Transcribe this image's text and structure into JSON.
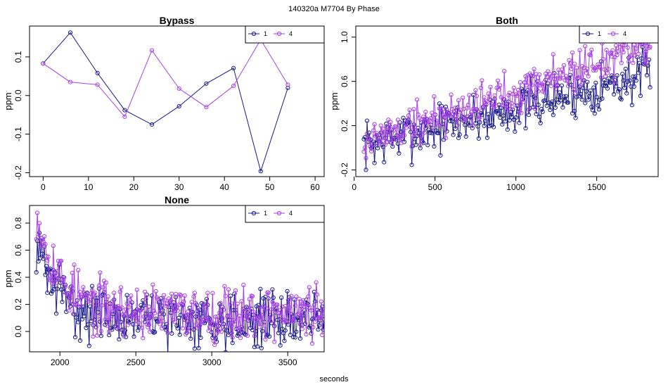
{
  "figure": {
    "title": "140320a   M7704   By Phase",
    "xlabel": "seconds"
  },
  "colors": {
    "series1": "#1a1a8c",
    "series4": "#a640e6"
  },
  "chart_data": [
    {
      "type": "line",
      "title": "Bypass",
      "ylabel": "ppm",
      "xlim": [
        -3,
        62
      ],
      "ylim": [
        -0.21,
        0.18
      ],
      "xticks": [
        0,
        10,
        20,
        30,
        40,
        50,
        60
      ],
      "yticks": [
        -0.2,
        -0.1,
        0.0,
        0.1
      ],
      "ytick_labels": [
        "-0.2",
        "-0.1",
        "0.0",
        "0.1"
      ],
      "legend": [
        "1",
        "4"
      ],
      "legend_position": "top-right",
      "series": [
        {
          "name": "1",
          "x": [
            0,
            6,
            12,
            18,
            24,
            30,
            36,
            42,
            48,
            54
          ],
          "y": [
            0.083,
            0.163,
            0.058,
            -0.038,
            -0.075,
            -0.028,
            0.031,
            0.071,
            -0.196,
            0.02
          ]
        },
        {
          "name": "4",
          "x": [
            0,
            6,
            12,
            18,
            24,
            30,
            36,
            42,
            48,
            54
          ],
          "y": [
            0.083,
            0.035,
            0.028,
            -0.055,
            0.117,
            0.018,
            -0.03,
            0.025,
            0.145,
            0.028
          ]
        }
      ]
    },
    {
      "type": "line",
      "title": "Both",
      "ylabel": "ppm",
      "xlim": [
        10,
        1880
      ],
      "ylim": [
        -0.26,
        1.1
      ],
      "xticks": [
        0,
        500,
        1000,
        1500
      ],
      "yticks": [
        -0.2,
        0.2,
        0.6,
        1.0
      ],
      "ytick_labels": [
        "-0.2",
        "0.2",
        "0.6",
        "1.0"
      ],
      "legend": [
        "1",
        "4"
      ],
      "legend_position": "top-right",
      "series": [
        {
          "name": "1",
          "x_range": [
            60,
            1830
          ],
          "n_points": 270,
          "start": 0.02,
          "end": 0.66,
          "noise": 0.11,
          "seed": 7
        },
        {
          "name": "4",
          "x_range": [
            60,
            1830
          ],
          "n_points": 270,
          "start": 0.05,
          "end": 0.93,
          "noise": 0.1,
          "seed": 19
        }
      ]
    },
    {
      "type": "line",
      "title": "None",
      "ylabel": "ppm",
      "xlim": [
        1800,
        3740
      ],
      "ylim": [
        -0.15,
        0.93
      ],
      "xticks": [
        2000,
        2500,
        3000,
        3500
      ],
      "yticks": [
        0.0,
        0.2,
        0.4,
        0.6,
        0.8
      ],
      "ytick_labels": [
        "0.0",
        "0.2",
        "0.4",
        "0.6",
        "0.8"
      ],
      "legend": [
        "1",
        "4"
      ],
      "legend_position": "top-right",
      "series": [
        {
          "name": "1",
          "x_range": [
            1845,
            3740
          ],
          "n_points": 290,
          "start": 0.66,
          "floor": 0.09,
          "decay": 150,
          "noise": 0.1,
          "seed": 31
        },
        {
          "name": "4",
          "x_range": [
            1845,
            3740
          ],
          "n_points": 290,
          "start": 0.89,
          "floor": 0.14,
          "decay": 150,
          "noise": 0.1,
          "seed": 53
        }
      ]
    }
  ]
}
